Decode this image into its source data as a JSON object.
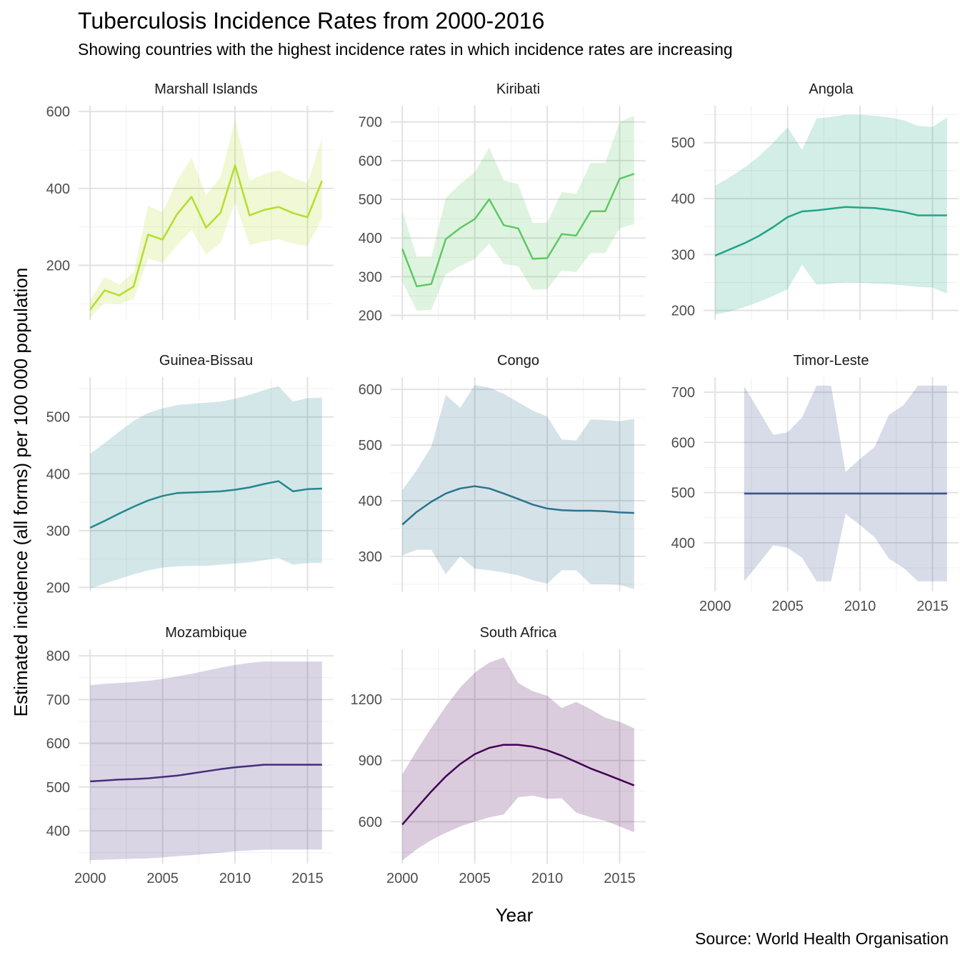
{
  "chart_data": {
    "type": "line",
    "title": "Tuberculosis Incidence Rates from 2000-2016",
    "subtitle": "Showing countries with the highest incidence rates in which incidence rates are increasing",
    "xlabel": "Year",
    "ylabel": "Estimated incidence (all forms) per 100 000 population",
    "caption": "Source: World Health Organisation",
    "x_ticks": [
      2000,
      2005,
      2010,
      2015
    ],
    "grid": true,
    "legend": "none",
    "panels": [
      {
        "name": "Marshall Islands",
        "color": "#b4de2c",
        "ylim": [
          58,
          615
        ],
        "y_ticks": [
          200,
          400,
          600
        ],
        "x": [
          2000,
          2001,
          2002,
          2003,
          2004,
          2005,
          2006,
          2007,
          2008,
          2009,
          2010,
          2011,
          2012,
          2013,
          2014,
          2015,
          2016
        ],
        "values": [
          85,
          135,
          122,
          145,
          280,
          267,
          333,
          378,
          298,
          337,
          460,
          330,
          344,
          352,
          336,
          325,
          420
        ],
        "lower": [
          65,
          102,
          100,
          112,
          218,
          207,
          252,
          292,
          228,
          258,
          365,
          253,
          262,
          268,
          257,
          250,
          322
        ],
        "upper": [
          111,
          170,
          150,
          182,
          355,
          338,
          420,
          480,
          382,
          430,
          580,
          420,
          437,
          447,
          428,
          414,
          530
        ]
      },
      {
        "name": "Kiribati",
        "color": "#5ec962",
        "ylim": [
          188,
          742
        ],
        "y_ticks": [
          200,
          300,
          400,
          500,
          600,
          700
        ],
        "x": [
          2000,
          2001,
          2002,
          2003,
          2004,
          2005,
          2006,
          2007,
          2008,
          2009,
          2010,
          2011,
          2012,
          2013,
          2014,
          2015,
          2016
        ],
        "values": [
          372,
          275,
          281,
          397,
          426,
          449,
          500,
          433,
          425,
          346,
          348,
          410,
          406,
          469,
          469,
          553,
          566
        ],
        "lower": [
          286,
          212,
          214,
          306,
          328,
          346,
          385,
          333,
          327,
          266,
          268,
          316,
          312,
          361,
          361,
          425,
          436
        ],
        "upper": [
          472,
          352,
          352,
          504,
          540,
          570,
          634,
          549,
          539,
          439,
          440,
          519,
          514,
          594,
          594,
          700,
          716
        ]
      },
      {
        "name": "Angola",
        "color": "#21a585",
        "ylim": [
          183,
          566
        ],
        "y_ticks": [
          200,
          300,
          400,
          500
        ],
        "x": [
          2000,
          2001,
          2002,
          2003,
          2004,
          2005,
          2006,
          2007,
          2008,
          2009,
          2010,
          2011,
          2012,
          2013,
          2014,
          2015,
          2016
        ],
        "values": [
          298,
          309,
          320,
          333,
          349,
          367,
          377,
          379,
          382,
          385,
          384,
          383,
          380,
          376,
          370,
          370,
          370
        ],
        "lower": [
          193,
          198,
          206,
          215,
          226,
          238,
          282,
          246,
          248,
          250,
          249,
          248,
          247,
          245,
          242,
          241,
          230
        ],
        "upper": [
          423,
          438,
          455,
          475,
          500,
          527,
          487,
          543,
          546,
          550,
          550,
          548,
          545,
          540,
          530,
          528,
          545
        ]
      },
      {
        "name": "Guinea-Bissau",
        "color": "#24868e",
        "ylim": [
          193,
          570
        ],
        "y_ticks": [
          200,
          300,
          400,
          500
        ],
        "x": [
          2000,
          2001,
          2002,
          2003,
          2004,
          2005,
          2006,
          2007,
          2008,
          2009,
          2010,
          2011,
          2012,
          2013,
          2014,
          2015,
          2016
        ],
        "values": [
          305,
          317,
          330,
          342,
          353,
          361,
          366,
          367,
          368,
          369,
          372,
          376,
          382,
          387,
          369,
          373,
          374
        ],
        "lower": [
          198,
          207,
          215,
          223,
          230,
          235,
          237,
          238,
          238,
          240,
          242,
          244,
          248,
          252,
          240,
          243,
          243
        ],
        "upper": [
          435,
          454,
          474,
          493,
          507,
          515,
          521,
          523,
          525,
          527,
          532,
          539,
          547,
          554,
          527,
          533,
          534
        ]
      },
      {
        "name": "Congo",
        "color": "#2c728e",
        "ylim": [
          237,
          622
        ],
        "y_ticks": [
          300,
          400,
          500,
          600
        ],
        "x": [
          2000,
          2001,
          2002,
          2003,
          2004,
          2005,
          2006,
          2007,
          2008,
          2009,
          2010,
          2011,
          2012,
          2013,
          2014,
          2015,
          2016
        ],
        "values": [
          357,
          380,
          398,
          413,
          422,
          426,
          422,
          413,
          403,
          393,
          386,
          383,
          382,
          382,
          381,
          379,
          378
        ],
        "lower": [
          302,
          312,
          312,
          268,
          300,
          278,
          275,
          271,
          266,
          257,
          251,
          275,
          275,
          250,
          250,
          249,
          241
        ],
        "upper": [
          419,
          455,
          497,
          590,
          567,
          608,
          603,
          592,
          577,
          562,
          551,
          510,
          508,
          546,
          545,
          543,
          547
        ]
      },
      {
        "name": "Timor-Leste",
        "color": "#3b528b",
        "ylim": [
          303,
          730
        ],
        "y_ticks": [
          400,
          500,
          600,
          700
        ],
        "x": [
          2002,
          2003,
          2004,
          2005,
          2006,
          2007,
          2008,
          2009,
          2010,
          2011,
          2012,
          2013,
          2014,
          2015,
          2016
        ],
        "values": [
          498,
          498,
          498,
          498,
          498,
          498,
          498,
          498,
          498,
          498,
          498,
          498,
          498,
          498,
          498
        ],
        "lower": [
          323,
          358,
          395,
          390,
          370,
          323,
          323,
          458,
          435,
          411,
          368,
          350,
          323,
          323,
          323
        ],
        "upper": [
          712,
          664,
          615,
          620,
          650,
          713,
          713,
          541,
          567,
          591,
          655,
          674,
          713,
          713,
          713
        ]
      },
      {
        "name": "Mozambique",
        "color": "#472d7b",
        "ylim": [
          325,
          815
        ],
        "y_ticks": [
          400,
          500,
          600,
          700,
          800
        ],
        "x": [
          2000,
          2001,
          2002,
          2003,
          2004,
          2005,
          2006,
          2007,
          2008,
          2009,
          2010,
          2011,
          2012,
          2013,
          2014,
          2015,
          2016
        ],
        "values": [
          513,
          515,
          517,
          518,
          520,
          523,
          526,
          531,
          536,
          541,
          545,
          548,
          551,
          551,
          551,
          551,
          551
        ],
        "lower": [
          333,
          334,
          335,
          336,
          337,
          339,
          342,
          344,
          347,
          350,
          353,
          355,
          357,
          357,
          357,
          357,
          357
        ],
        "upper": [
          733,
          736,
          738,
          740,
          743,
          747,
          753,
          759,
          766,
          773,
          779,
          784,
          787,
          787,
          787,
          787,
          787
        ]
      },
      {
        "name": "South Africa",
        "color": "#440154",
        "ylim": [
          395,
          1445
        ],
        "y_ticks": [
          600,
          900,
          1200
        ],
        "x": [
          2000,
          2001,
          2002,
          2003,
          2004,
          2005,
          2006,
          2007,
          2008,
          2009,
          2010,
          2011,
          2012,
          2013,
          2014,
          2015,
          2016
        ],
        "values": [
          586,
          668,
          748,
          822,
          883,
          931,
          962,
          977,
          977,
          968,
          950,
          924,
          893,
          861,
          834,
          806,
          778
        ],
        "lower": [
          410,
          465,
          510,
          545,
          577,
          600,
          621,
          636,
          720,
          728,
          712,
          715,
          645,
          622,
          605,
          577,
          548
        ],
        "upper": [
          832,
          950,
          1060,
          1165,
          1258,
          1330,
          1380,
          1405,
          1280,
          1240,
          1217,
          1157,
          1187,
          1152,
          1110,
          1090,
          1058
        ]
      }
    ]
  }
}
